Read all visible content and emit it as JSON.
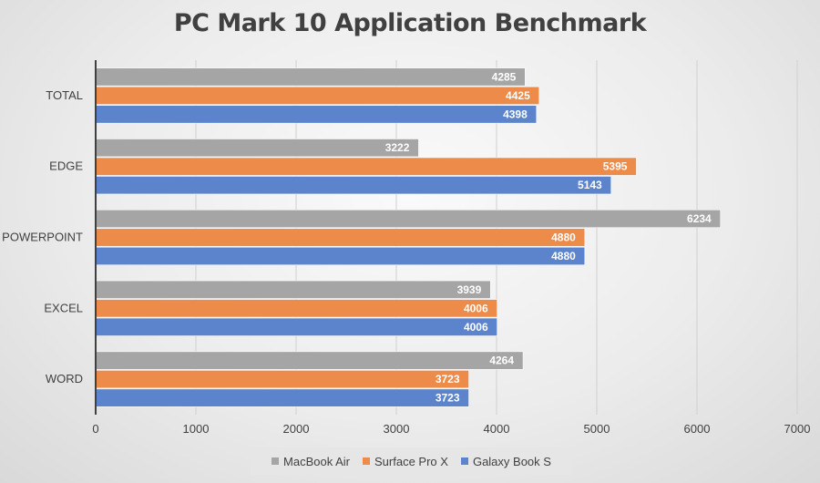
{
  "chart_data": {
    "type": "bar",
    "orientation": "horizontal",
    "title": "PC Mark 10 Application Benchmark",
    "categories": [
      "TOTAL",
      "EDGE",
      "POWERPOINT",
      "EXCEL",
      "WORD"
    ],
    "series": [
      {
        "name": "MacBook Air",
        "color": "#a5a5a5",
        "values": [
          4285,
          3222,
          6234,
          3939,
          4264
        ]
      },
      {
        "name": "Surface Pro X",
        "color": "#ed8b4a",
        "values": [
          4425,
          5395,
          4880,
          4006,
          3723
        ]
      },
      {
        "name": "Galaxy Book S",
        "color": "#5b84cc",
        "values": [
          4398,
          5143,
          4880,
          4006,
          3723
        ]
      }
    ],
    "xlim": [
      0,
      7000
    ],
    "xticks": [
      "0",
      "1000",
      "2000",
      "3000",
      "4000",
      "5000",
      "6000",
      "7000"
    ],
    "grid": true,
    "legend": "bottom"
  }
}
